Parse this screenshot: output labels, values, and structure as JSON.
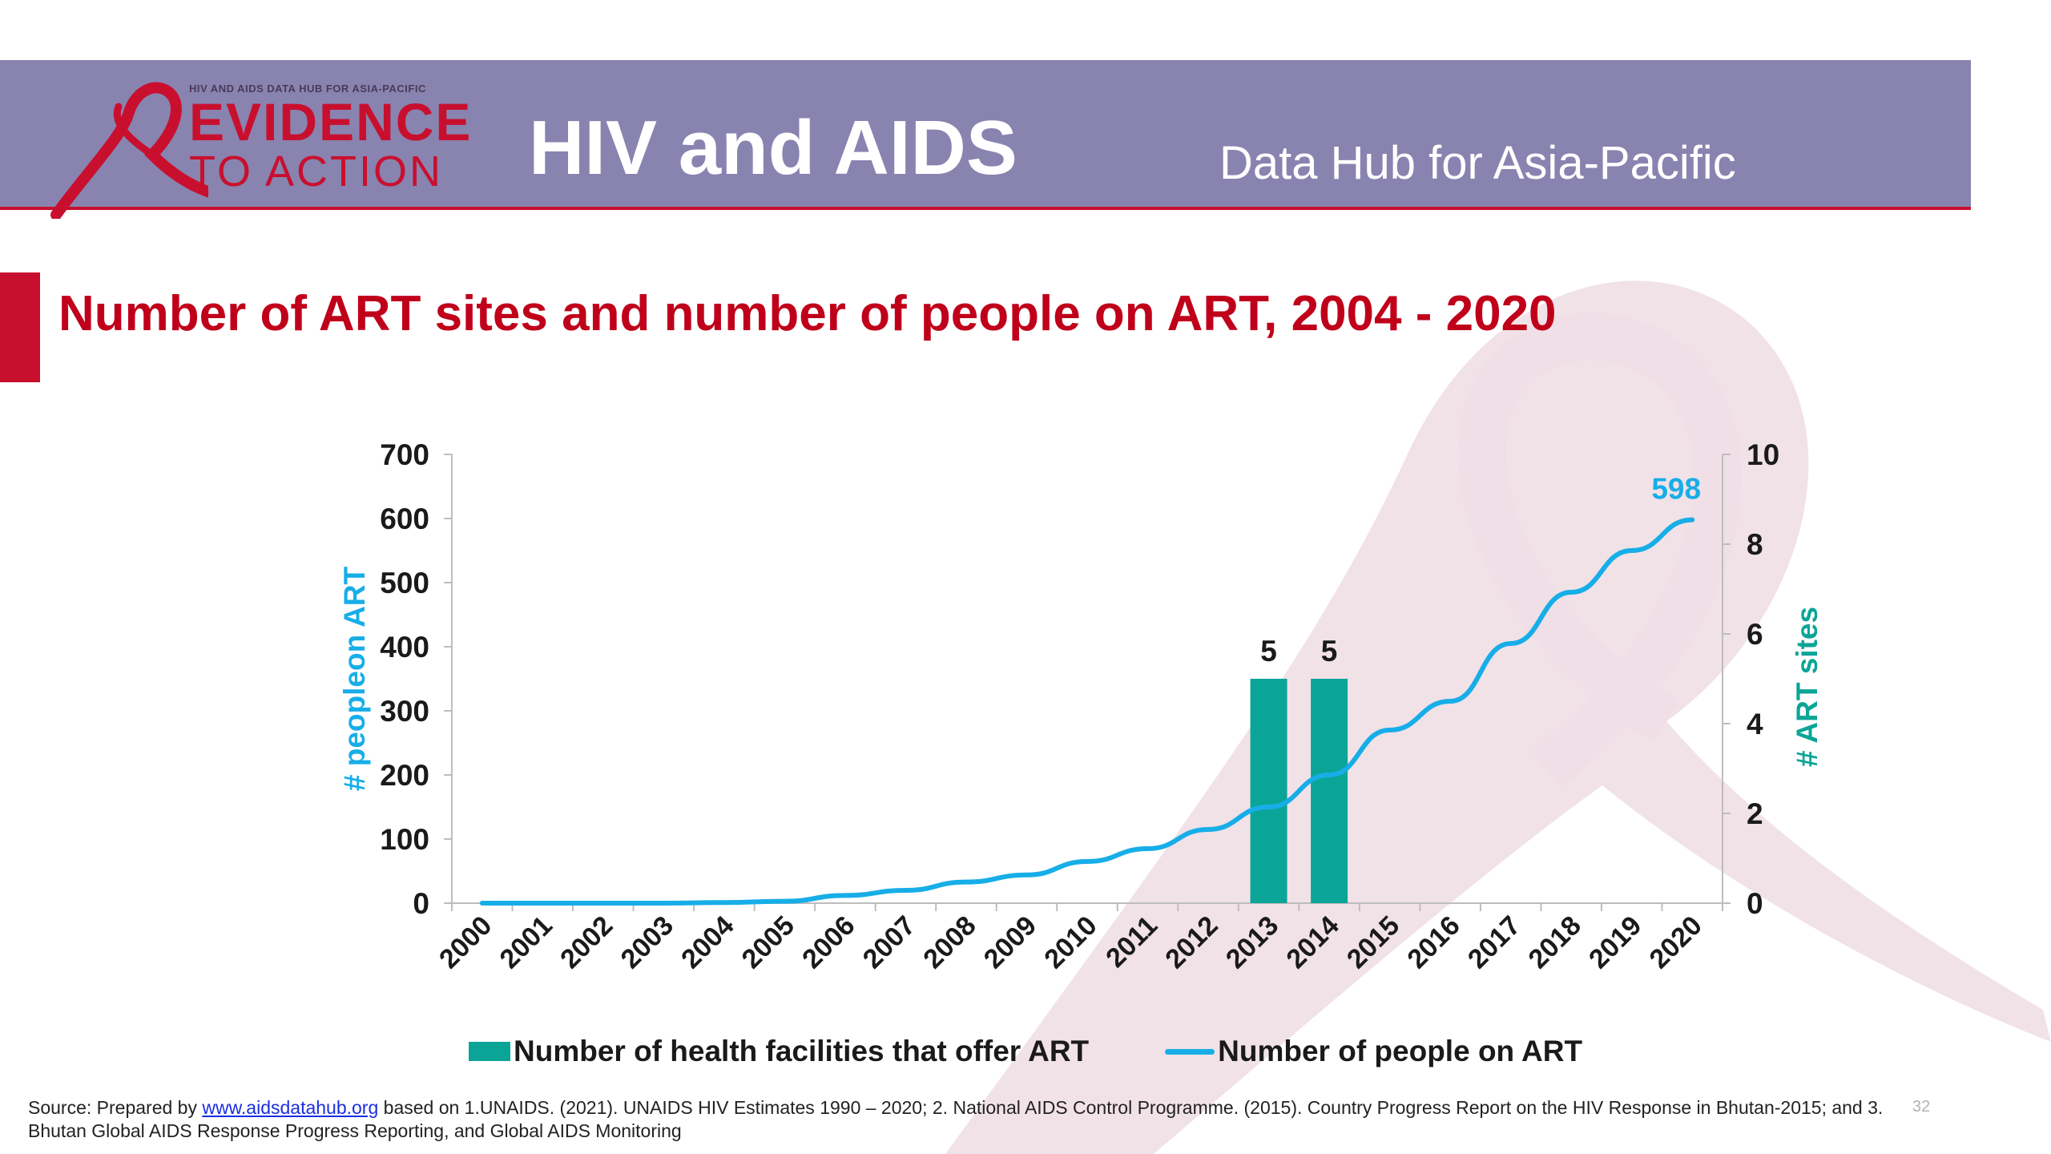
{
  "header": {
    "logo_top": "HIV AND AIDS DATA HUB FOR ASIA-PACIFIC",
    "logo_line1": "EVIDENCE",
    "logo_line2": "TO ACTION",
    "title": "HIV and AIDS",
    "subtitle": "Data Hub for Asia-Pacific"
  },
  "slide": {
    "title": "Number of ART sites and number of people on ART, 2004 - 2020",
    "page_number": "32"
  },
  "footer": {
    "prefix": "Source: Prepared by ",
    "link_text": "www.aidsdatahub.org",
    "suffix": " based on  1.UNAIDS. (2021). UNAIDS HIV Estimates 1990 – 2020;  2. National AIDS Control Programme. (2015). Country Progress Report on the HIV Response in Bhutan-2015; and 3.  Bhutan Global AIDS Response Progress Reporting, and Global AIDS Monitoring"
  },
  "colors": {
    "banner": "#8983b0",
    "accent_red": "#c8102e",
    "bar": "#0ba597",
    "line": "#17aee8",
    "watermark": "#f0dfe5"
  },
  "chart_data": {
    "type": "bar+line",
    "categories": [
      "2000",
      "2001",
      "2002",
      "2003",
      "2004",
      "2005",
      "2006",
      "2007",
      "2008",
      "2009",
      "2010",
      "2011",
      "2012",
      "2013",
      "2014",
      "2015",
      "2016",
      "2017",
      "2018",
      "2019",
      "2020"
    ],
    "series": [
      {
        "name": "Number of health facilities that offer ART",
        "type": "bar",
        "axis": "right",
        "values": [
          null,
          null,
          null,
          null,
          null,
          null,
          null,
          null,
          null,
          null,
          null,
          null,
          null,
          5,
          5,
          null,
          null,
          null,
          null,
          null,
          null
        ],
        "labels": [
          "",
          "",
          "",
          "",
          "",
          "",
          "",
          "",
          "",
          "",
          "",
          "",
          "",
          "5",
          "5",
          "",
          "",
          "",
          "",
          "",
          ""
        ]
      },
      {
        "name": "Number of people on ART",
        "type": "line",
        "axis": "left",
        "values": [
          0,
          0,
          0,
          0,
          1,
          3,
          12,
          20,
          33,
          44,
          65,
          85,
          115,
          150,
          200,
          270,
          315,
          405,
          485,
          550,
          598
        ],
        "end_label": "598"
      }
    ],
    "y_left": {
      "label": "# peopleon ART",
      "min": 0,
      "max": 700,
      "ticks": [
        0,
        100,
        200,
        300,
        400,
        500,
        600,
        700
      ]
    },
    "y_right": {
      "label": "# ART sites",
      "min": 0,
      "max": 10,
      "ticks": [
        0,
        2,
        4,
        6,
        8,
        10
      ]
    },
    "grid": false,
    "legend_position": "bottom"
  }
}
